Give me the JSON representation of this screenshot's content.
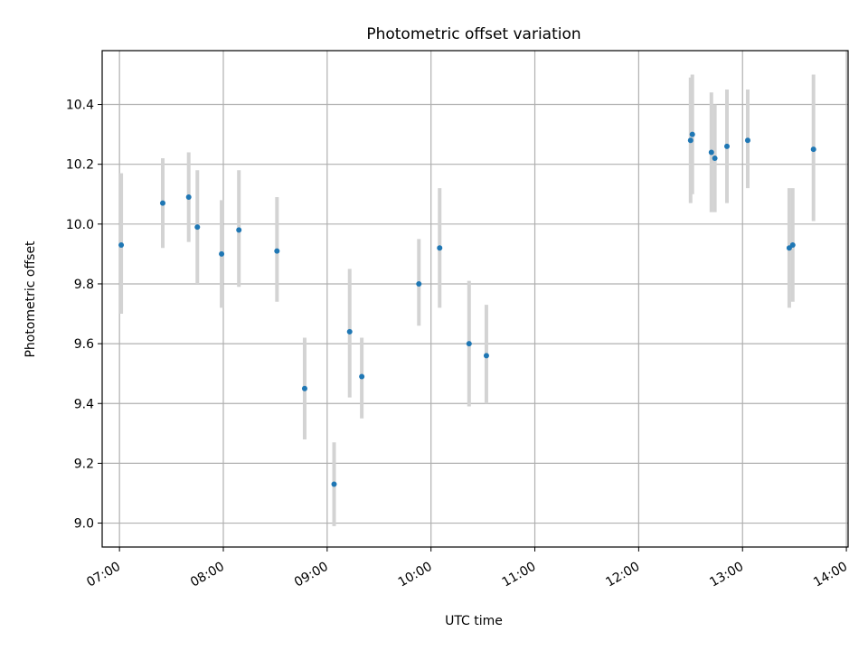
{
  "chart_data": {
    "type": "scatter",
    "title": "Photometric offset variation",
    "xlabel": "UTC time",
    "ylabel": "Photometric offset",
    "x_unit": "UTC time (HH:MM)",
    "xlim": [
      "06:50",
      "14:01"
    ],
    "ylim": [
      8.92,
      10.58
    ],
    "x_ticks": [
      "07:00",
      "08:00",
      "09:00",
      "10:00",
      "11:00",
      "12:00",
      "13:00",
      "14:00"
    ],
    "y_ticks": [
      "9.0",
      "9.2",
      "9.4",
      "9.6",
      "9.8",
      "10.0",
      "10.2",
      "10.4"
    ],
    "y_tick_values": [
      9.0,
      9.2,
      9.4,
      9.6,
      9.8,
      10.0,
      10.2,
      10.4
    ],
    "grid": true,
    "marker_color": "#1f77b4",
    "errorbar_color": "#d3d3d3",
    "points": [
      {
        "x": "07:01",
        "y": 9.93,
        "lo": 9.7,
        "hi": 10.17
      },
      {
        "x": "07:25",
        "y": 10.07,
        "lo": 9.92,
        "hi": 10.22
      },
      {
        "x": "07:40",
        "y": 10.09,
        "lo": 9.94,
        "hi": 10.24
      },
      {
        "x": "07:45",
        "y": 9.99,
        "lo": 9.8,
        "hi": 10.18
      },
      {
        "x": "07:59",
        "y": 9.9,
        "lo": 9.72,
        "hi": 10.08
      },
      {
        "x": "08:09",
        "y": 9.98,
        "lo": 9.79,
        "hi": 10.18
      },
      {
        "x": "08:31",
        "y": 9.91,
        "lo": 9.74,
        "hi": 10.09
      },
      {
        "x": "08:47",
        "y": 9.45,
        "lo": 9.28,
        "hi": 9.62
      },
      {
        "x": "09:04",
        "y": 9.13,
        "lo": 8.99,
        "hi": 9.27
      },
      {
        "x": "09:13",
        "y": 9.64,
        "lo": 9.42,
        "hi": 9.85
      },
      {
        "x": "09:20",
        "y": 9.49,
        "lo": 9.35,
        "hi": 9.62
      },
      {
        "x": "09:53",
        "y": 9.8,
        "lo": 9.66,
        "hi": 9.95
      },
      {
        "x": "10:05",
        "y": 9.92,
        "lo": 9.72,
        "hi": 10.12
      },
      {
        "x": "10:22",
        "y": 9.6,
        "lo": 9.39,
        "hi": 9.81
      },
      {
        "x": "10:32",
        "y": 9.56,
        "lo": 9.4,
        "hi": 9.73
      },
      {
        "x": "12:30",
        "y": 10.28,
        "lo": 10.07,
        "hi": 10.49
      },
      {
        "x": "12:31",
        "y": 10.3,
        "lo": 10.1,
        "hi": 10.5
      },
      {
        "x": "12:42",
        "y": 10.24,
        "lo": 10.04,
        "hi": 10.44
      },
      {
        "x": "12:44",
        "y": 10.22,
        "lo": 10.04,
        "hi": 10.4
      },
      {
        "x": "12:51",
        "y": 10.26,
        "lo": 10.07,
        "hi": 10.45
      },
      {
        "x": "13:03",
        "y": 10.28,
        "lo": 10.12,
        "hi": 10.45
      },
      {
        "x": "13:27",
        "y": 9.92,
        "lo": 9.72,
        "hi": 10.12
      },
      {
        "x": "13:29",
        "y": 9.93,
        "lo": 9.74,
        "hi": 10.12
      },
      {
        "x": "13:41",
        "y": 10.25,
        "lo": 10.01,
        "hi": 10.5
      }
    ]
  }
}
